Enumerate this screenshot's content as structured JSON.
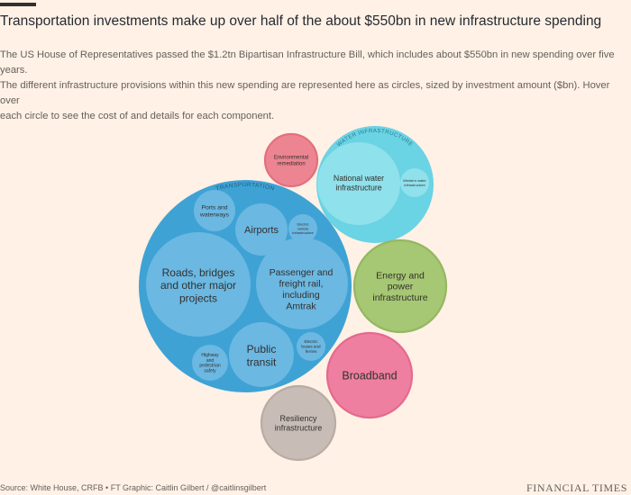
{
  "header": {
    "title": "Transportation investments make up over half of the about $550bn in new infrastructure spending",
    "subtitle_lines": [
      "The US House of Representatives passed the $1.2tn Bipartisan Infrastructure Bill, which includes about $550bn in new spending over five years.",
      "The different infrastructure provisions within this new spending are represented here as circles, sized by investment amount ($bn). Hover over",
      "each circle to see the cost of and details for each component."
    ]
  },
  "footer": {
    "source": "Source: White House, CRFB • FT Graphic: Caitlin Gilbert / @caitlinsgilbert",
    "brand": "FINANCIAL TIMES"
  },
  "colors": {
    "background": "#FFF1E5",
    "transportation_outer": "#3FA2D4",
    "transportation_inner": "#6BB8E2",
    "water_outer": "#6AD3E4",
    "water_inner": "#8FE1EC",
    "environmental": "#EC8591",
    "energy": "#A6C773",
    "broadband": "#EE7FA0",
    "resiliency": "#C8BDB6"
  },
  "chart_data": {
    "type": "packed-bubble",
    "title": "Transportation investments make up over half of the about $550bn in new infrastructure spending",
    "unit": "$bn",
    "groups": [
      {
        "name": "TRANSPORTATION",
        "items": [
          "Roads, bridges and other major projects",
          "Passenger and freight rail, including Amtrak",
          "Public transit",
          "Airports",
          "Ports and waterways",
          "Electric vehicle infrastructure",
          "Highway and pedestrian safety",
          "Electric buses and ferries"
        ]
      },
      {
        "name": "WATER INFRASTRUCTURE",
        "items": [
          "National water infrastructure",
          "Western water infrastructure"
        ]
      }
    ],
    "standalone": [
      "Environmental remediation",
      "Energy and power infrastructure",
      "Broadband",
      "Resiliency infrastructure"
    ]
  }
}
